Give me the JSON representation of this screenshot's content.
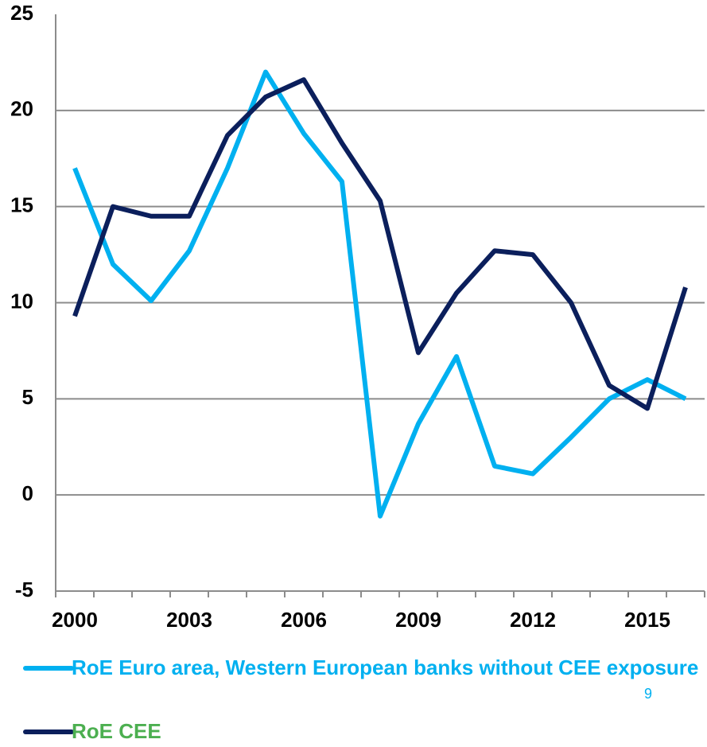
{
  "chart_data": {
    "type": "line",
    "categories": [
      "2000",
      null,
      null,
      "2003",
      null,
      null,
      "2006",
      null,
      null,
      "2009",
      null,
      null,
      "2012",
      null,
      null,
      "2015",
      null
    ],
    "series": [
      {
        "name": "RoE Euro area, Western European banks without CEE exposure",
        "color": "#00b0f0",
        "label_color": "#00b0f0",
        "values": [
          17.0,
          12.0,
          10.1,
          12.7,
          17.0,
          22.0,
          18.8,
          16.3,
          -1.1,
          3.7,
          7.2,
          1.5,
          1.1,
          3.0,
          5.0,
          6.0,
          5.0
        ]
      },
      {
        "name": "RoE CEE",
        "color": "#0b1f5c",
        "label_color": "#4caf50",
        "values": [
          9.3,
          15.0,
          14.5,
          14.5,
          18.7,
          20.7,
          21.6,
          18.3,
          15.3,
          7.4,
          10.5,
          12.7,
          12.5,
          10.0,
          5.7,
          4.5,
          10.8
        ]
      }
    ],
    "ylim": [
      -5,
      25
    ],
    "yticks": [
      -5,
      0,
      5,
      10,
      15,
      20,
      25
    ],
    "grid": true,
    "page_number": "9"
  }
}
